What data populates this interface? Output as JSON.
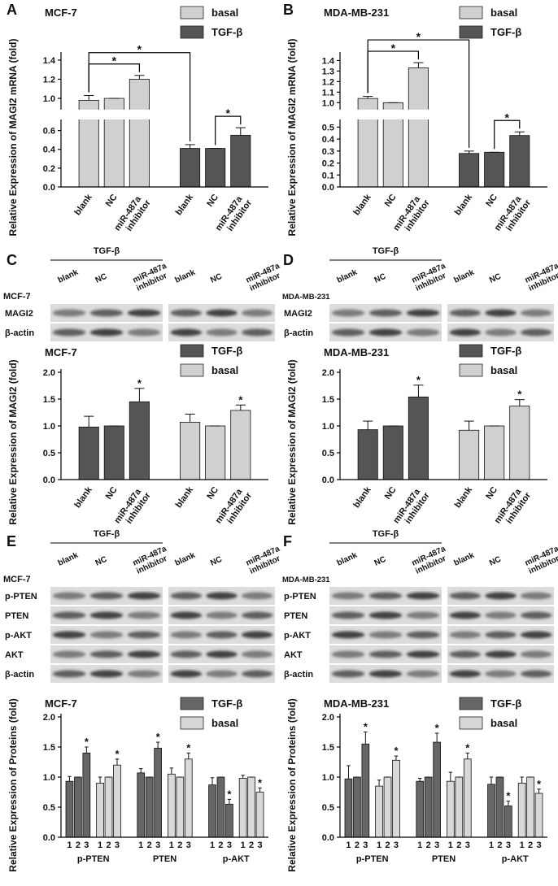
{
  "panel_labels": [
    "A",
    "B",
    "C",
    "D",
    "E",
    "F"
  ],
  "chart_data": [
    {
      "type": "bar",
      "title": "MCF-7",
      "y_label": "Relative Expression of MAGI2 mRNA (fold)",
      "categories": [
        "blank",
        "NC",
        "miR-487a inhibitor",
        "blank",
        "NC",
        "miR-487a inhibitor"
      ],
      "series": [
        {
          "name": "basal",
          "color": "#d0d0d0",
          "values": [
            0.98,
            1.0,
            1.2,
            null,
            null,
            null
          ],
          "errors": [
            0.05,
            0.0,
            0.04,
            null,
            null,
            null
          ]
        },
        {
          "name": "TGF-β",
          "color": "#555555",
          "values": [
            null,
            null,
            null,
            0.41,
            0.41,
            0.55
          ],
          "errors": [
            null,
            null,
            null,
            0.04,
            0.0,
            0.08
          ]
        }
      ],
      "ylim": [
        0,
        1.45
      ],
      "axis_break": [
        0.7,
        0.9
      ],
      "yticks": [
        {
          "value": 0,
          "label": "0.0"
        },
        0.2,
        0.4,
        0.6,
        {
          "value": 1,
          "label": "1.0"
        },
        1.2,
        1.4
      ],
      "brackets": [
        {
          "between": [
            0,
            2
          ],
          "label": "*"
        },
        {
          "between": [
            0,
            3
          ],
          "label": "*"
        },
        {
          "between": [
            4,
            5
          ],
          "label": "*"
        }
      ]
    },
    {
      "type": "bar",
      "title": "MDA-MB-231",
      "y_label": "Relative Expression of MAGI2 mRNA (fold)",
      "categories": [
        "blank",
        "NC",
        "miR-487a inhibitor",
        "blank",
        "NC",
        "miR-487a inhibitor"
      ],
      "series": [
        {
          "name": "basal",
          "color": "#d0d0d0",
          "values": [
            1.04,
            1.0,
            1.33,
            null,
            null,
            null
          ],
          "errors": [
            0.02,
            0.0,
            0.05,
            null,
            null,
            null
          ]
        },
        {
          "name": "TGF-β",
          "color": "#555555",
          "values": [
            null,
            null,
            null,
            0.28,
            0.29,
            0.43
          ],
          "errors": [
            null,
            null,
            null,
            0.02,
            0.0,
            0.03
          ]
        }
      ],
      "ylim": [
        0,
        1.45
      ],
      "axis_break": [
        0.55,
        0.95
      ],
      "yticks": [
        {
          "value": 0,
          "label": "0.0"
        },
        0.1,
        0.2,
        0.3,
        0.4,
        0.5,
        {
          "value": 1,
          "label": "1.0"
        },
        1.1,
        1.2,
        1.3,
        1.4
      ],
      "brackets": [
        {
          "between": [
            0,
            2
          ],
          "label": "*"
        },
        {
          "between": [
            0,
            3
          ],
          "label": "*"
        },
        {
          "between": [
            4,
            5
          ],
          "label": "*"
        }
      ]
    },
    {
      "type": "bar",
      "title": "MCF-7",
      "y_label": "Relative Expression of MAGI2 (fold)",
      "categories": [
        "blank",
        "NC",
        "miR-487a inhibitor",
        "blank",
        "NC",
        "miR-487a inhibitor"
      ],
      "series": [
        {
          "name": "TGF-β",
          "color": "#555555",
          "values": [
            0.98,
            1.0,
            1.45,
            null,
            null,
            null
          ],
          "errors": [
            0.2,
            0.0,
            0.25,
            null,
            null,
            null
          ],
          "sig": [
            null,
            null,
            "*",
            null,
            null,
            null
          ]
        },
        {
          "name": "basal",
          "color": "#d0d0d0",
          "values": [
            null,
            null,
            null,
            1.07,
            1.0,
            1.29
          ],
          "errors": [
            null,
            null,
            null,
            0.15,
            0.0,
            0.1
          ],
          "sig": [
            null,
            null,
            null,
            null,
            null,
            "*"
          ]
        }
      ],
      "ylim": [
        0,
        2
      ],
      "yticks": [
        {
          "value": 0,
          "label": "0.0"
        },
        0.5,
        {
          "value": 1,
          "label": "1.0"
        },
        1.5,
        {
          "value": 2,
          "label": "2.0"
        }
      ]
    },
    {
      "type": "bar",
      "title": "MDA-MB-231",
      "y_label": "Relative Expression of MAGI2 (fold)",
      "categories": [
        "blank",
        "NC",
        "miR-487a inhibitor",
        "blank",
        "NC",
        "miR-487a inhibitor"
      ],
      "series": [
        {
          "name": "TGF-β",
          "color": "#555555",
          "values": [
            0.93,
            1.0,
            1.54,
            null,
            null,
            null
          ],
          "errors": [
            0.16,
            0.0,
            0.22,
            null,
            null,
            null
          ],
          "sig": [
            null,
            null,
            "*",
            null,
            null,
            null
          ]
        },
        {
          "name": "basal",
          "color": "#d0d0d0",
          "values": [
            null,
            null,
            null,
            0.92,
            1.0,
            1.37
          ],
          "errors": [
            null,
            null,
            null,
            0.17,
            0.0,
            0.12
          ],
          "sig": [
            null,
            null,
            null,
            null,
            null,
            "*"
          ]
        }
      ],
      "ylim": [
        0,
        2
      ],
      "yticks": [
        {
          "value": 0,
          "label": "0.0"
        },
        0.5,
        {
          "value": 1,
          "label": "1.0"
        },
        1.5,
        {
          "value": 2,
          "label": "2.0"
        }
      ]
    },
    {
      "type": "bar",
      "title": "MCF-7",
      "y_label": "Relative Expression of Proteins (fold)",
      "categories": [
        "1",
        "2",
        "3",
        "1",
        "2",
        "3",
        "1",
        "2",
        "3",
        "1",
        "2",
        "3",
        "1",
        "2",
        "3",
        "1",
        "2",
        "3"
      ],
      "groups": [
        "p-PTEN",
        "PTEN",
        "p-AKT"
      ],
      "series": [
        {
          "name": "TGF-β",
          "color": "#666666",
          "values": [
            0.93,
            1.0,
            1.4,
            null,
            null,
            null,
            1.07,
            1.0,
            1.48,
            null,
            null,
            null,
            0.87,
            1.0,
            0.55,
            null,
            null,
            null
          ],
          "errors": [
            0.08,
            0.0,
            0.1,
            null,
            null,
            null,
            0.07,
            0.0,
            0.1,
            null,
            null,
            null,
            0.12,
            0.0,
            0.08,
            null,
            null,
            null
          ],
          "sig": [
            null,
            null,
            "*",
            null,
            null,
            null,
            null,
            null,
            "*",
            null,
            null,
            null,
            null,
            null,
            "*",
            null,
            null,
            null
          ]
        },
        {
          "name": "basal",
          "color": "#d8d8d8",
          "values": [
            null,
            null,
            null,
            0.9,
            1.0,
            1.2,
            null,
            null,
            null,
            1.05,
            1.0,
            1.3,
            null,
            null,
            null,
            0.98,
            1.0,
            0.75
          ],
          "errors": [
            null,
            null,
            null,
            0.1,
            0.0,
            0.1,
            null,
            null,
            null,
            0.1,
            0.0,
            0.1,
            null,
            null,
            null,
            0.05,
            0.0,
            0.07
          ],
          "sig": [
            null,
            null,
            null,
            null,
            null,
            "*",
            null,
            null,
            null,
            null,
            null,
            "*",
            null,
            null,
            null,
            null,
            null,
            "*"
          ]
        }
      ],
      "ylim": [
        0,
        2
      ],
      "yticks": [
        {
          "value": 0,
          "label": "0.0"
        },
        0.5,
        {
          "value": 1,
          "label": "1.0"
        },
        1.5,
        {
          "value": 2,
          "label": "2.0"
        }
      ]
    },
    {
      "type": "bar",
      "title": "MDA-MB-231",
      "y_label": "Relative Expression of Proteins (fold)",
      "categories": [
        "1",
        "2",
        "3",
        "1",
        "2",
        "3",
        "1",
        "2",
        "3",
        "1",
        "2",
        "3",
        "1",
        "2",
        "3",
        "1",
        "2",
        "3"
      ],
      "groups": [
        "p-PTEN",
        "PTEN",
        "p-AKT"
      ],
      "series": [
        {
          "name": "TGF-β",
          "color": "#666666",
          "values": [
            0.97,
            1.0,
            1.55,
            null,
            null,
            null,
            0.93,
            1.0,
            1.58,
            null,
            null,
            null,
            0.88,
            1.0,
            0.52,
            null,
            null,
            null
          ],
          "errors": [
            0.22,
            0.0,
            0.2,
            null,
            null,
            null,
            0.05,
            0.0,
            0.15,
            null,
            null,
            null,
            0.12,
            0.0,
            0.08,
            null,
            null,
            null
          ],
          "sig": [
            null,
            null,
            "*",
            null,
            null,
            null,
            null,
            null,
            "*",
            null,
            null,
            null,
            null,
            null,
            "*",
            null,
            null,
            null
          ]
        },
        {
          "name": "basal",
          "color": "#d8d8d8",
          "values": [
            null,
            null,
            null,
            0.85,
            1.0,
            1.28,
            null,
            null,
            null,
            0.93,
            1.0,
            1.3,
            null,
            null,
            null,
            0.9,
            1.0,
            0.73
          ],
          "errors": [
            null,
            null,
            null,
            0.1,
            0.0,
            0.07,
            null,
            null,
            null,
            0.15,
            0.0,
            0.1,
            null,
            null,
            null,
            0.1,
            0.0,
            0.07
          ],
          "sig": [
            null,
            null,
            null,
            null,
            null,
            "*",
            null,
            null,
            null,
            null,
            null,
            "*",
            null,
            null,
            null,
            null,
            null,
            "*"
          ]
        }
      ],
      "ylim": [
        0,
        2
      ],
      "yticks": [
        {
          "value": 0,
          "label": "0.0"
        },
        0.5,
        {
          "value": 1,
          "label": "1.0"
        },
        1.5,
        {
          "value": 2,
          "label": "2.0"
        }
      ]
    }
  ],
  "blots": [
    {
      "cell_line": "MCF-7",
      "treatment": "TGF-β",
      "lanes": [
        "blank",
        "NC",
        "miR-487a inhibitor"
      ],
      "rows": [
        "MAGI2",
        "β-actin"
      ]
    },
    {
      "cell_line": "MDA-MB-231",
      "treatment": "TGF-β",
      "lanes": [
        "blank",
        "NC",
        "miR-487a inhibitor"
      ],
      "rows": [
        "MAGI2",
        "β-actin"
      ]
    },
    {
      "cell_line": "MCF-7",
      "treatment": "TGF-β",
      "lanes": [
        "blank",
        "NC",
        "miR-487a inhibitor"
      ],
      "rows": [
        "p-PTEN",
        "PTEN",
        "p-AKT",
        "AKT",
        "β-actin"
      ]
    },
    {
      "cell_line": "MDA-MB-231",
      "treatment": "TGF-β",
      "lanes": [
        "blank",
        "NC",
        "miR-487a inhibitor"
      ],
      "rows": [
        "p-PTEN",
        "PTEN",
        "p-AKT",
        "AKT",
        "β-actin"
      ]
    }
  ]
}
